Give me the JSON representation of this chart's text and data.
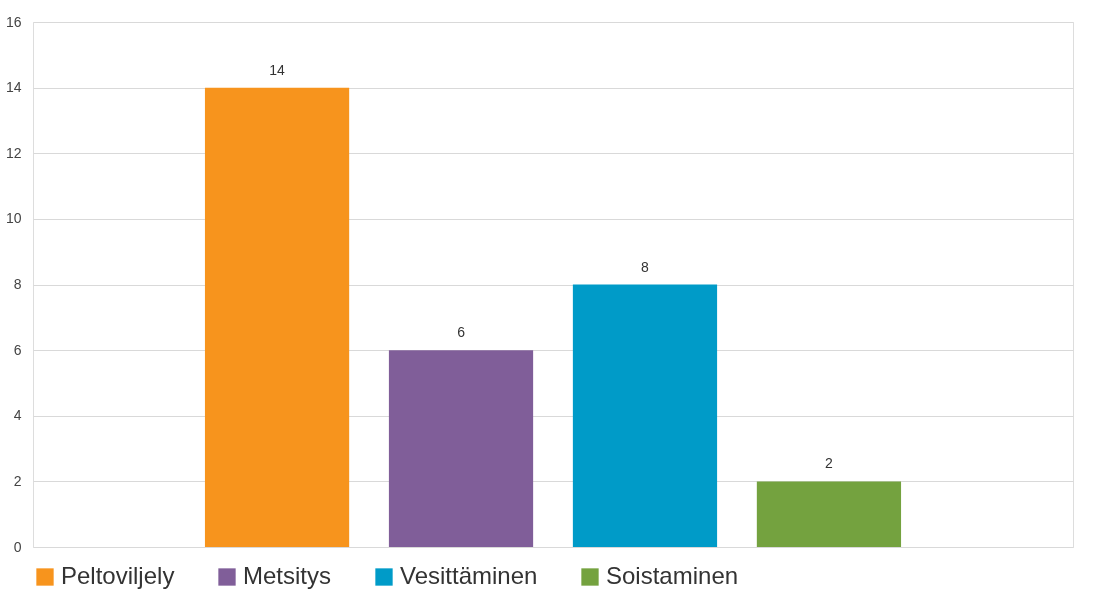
{
  "chart_data": {
    "type": "bar",
    "categories": [
      null
    ],
    "series": [
      {
        "name": "Peltoviljely",
        "color": "#f7941d",
        "values": [
          14
        ]
      },
      {
        "name": "Metsitys",
        "color": "#805e99",
        "values": [
          6
        ]
      },
      {
        "name": "Vesittäminen",
        "color": "#009bc8",
        "values": [
          8
        ]
      },
      {
        "name": "Soistaminen",
        "color": "#74a23f",
        "values": [
          2
        ]
      }
    ],
    "ylim": [
      0,
      16
    ],
    "yticks": [
      0,
      2,
      4,
      6,
      8,
      10,
      12,
      14,
      16
    ],
    "grid": "y",
    "legend": "bottom",
    "data_labels": true
  }
}
